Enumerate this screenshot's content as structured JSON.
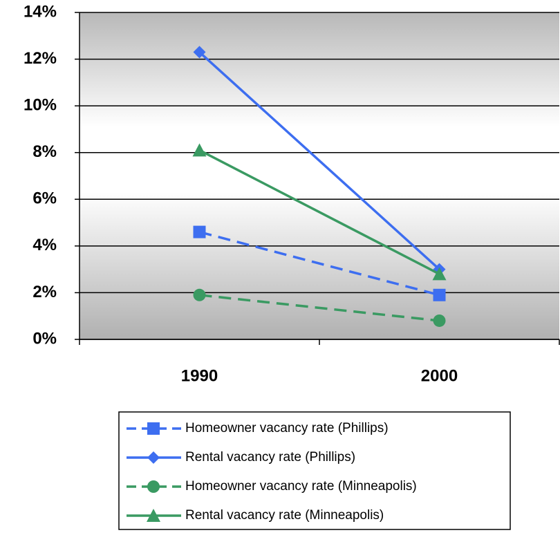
{
  "chart_data": {
    "type": "line",
    "categories": [
      "1990",
      "2000"
    ],
    "series": [
      {
        "name": "Homeowner vacancy rate (Phillips)",
        "color": "#3d6ef0",
        "marker": "square",
        "dashed": true,
        "values": [
          4.6,
          1.9
        ]
      },
      {
        "name": "Rental vacancy rate (Phillips)",
        "color": "#3d6ef0",
        "marker": "diamond",
        "dashed": false,
        "values": [
          12.3,
          3.0
        ]
      },
      {
        "name": "Homeowner vacancy rate (Minneapolis)",
        "color": "#3a9a62",
        "marker": "circle",
        "dashed": true,
        "values": [
          1.9,
          0.8
        ]
      },
      {
        "name": "Rental vacancy rate (Minneapolis)",
        "color": "#3a9a62",
        "marker": "triangle",
        "dashed": false,
        "values": [
          8.1,
          2.8
        ]
      }
    ],
    "ylim": [
      0,
      14
    ],
    "yticks": [
      {
        "value": 0,
        "label": "0%"
      },
      {
        "value": 2,
        "label": "2%"
      },
      {
        "value": 4,
        "label": "4%"
      },
      {
        "value": 6,
        "label": "6%"
      },
      {
        "value": 8,
        "label": "8%"
      },
      {
        "value": 10,
        "label": "10%"
      },
      {
        "value": 12,
        "label": "12%"
      },
      {
        "value": 14,
        "label": "14%"
      }
    ],
    "grid": true,
    "legend": "bottom"
  }
}
